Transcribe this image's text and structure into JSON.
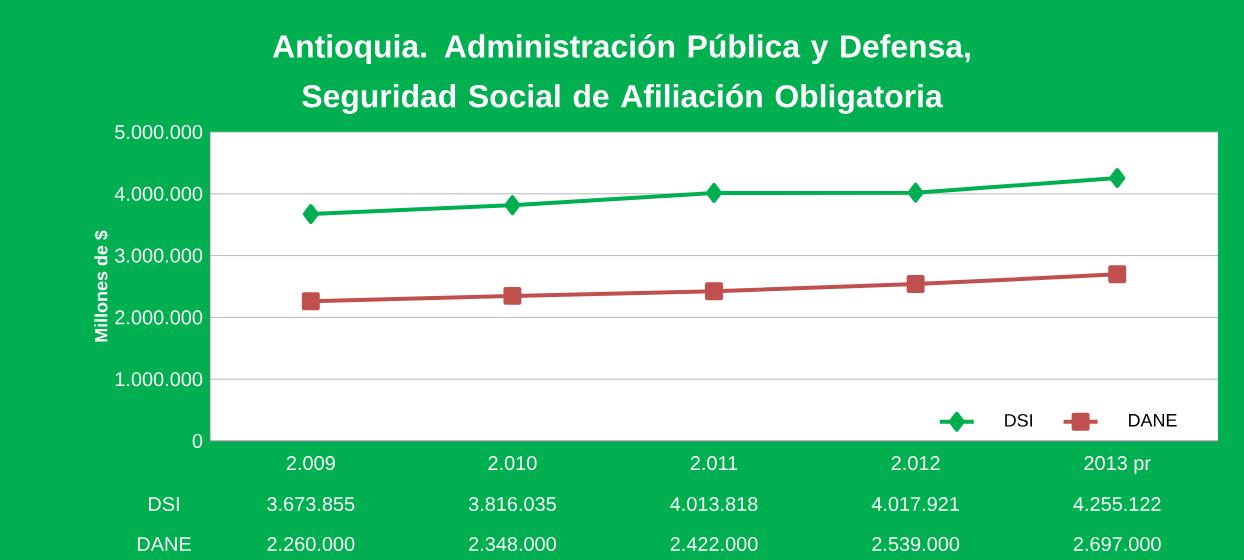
{
  "chart_data": {
    "type": "line",
    "title": "Antioquia. Administración Pública y Defensa,\nSeguridad Social de Afiliación Obligatoria",
    "ylabel": "Millones de $",
    "categories": [
      "2.009",
      "2.010",
      "2.011",
      "2.012",
      "2013 pr"
    ],
    "series": [
      {
        "name": "DSI",
        "color": "#00b050",
        "marker": "diamond",
        "values": [
          3673855,
          3816035,
          4013818,
          4017921,
          4255122
        ],
        "value_labels": [
          "3.673.855",
          "3.816.035",
          "4.013.818",
          "4.017.921",
          "4.255.122"
        ]
      },
      {
        "name": "DANE",
        "color": "#c0504d",
        "marker": "square",
        "values": [
          2260000,
          2348000,
          2422000,
          2539000,
          2697000
        ],
        "value_labels": [
          "2.260.000",
          "2.348.000",
          "2.422.000",
          "2.539.000",
          "2.697.000"
        ]
      }
    ],
    "ylim": [
      0,
      5000000
    ],
    "yticks": [
      0,
      {
        "value": 1000000,
        "label": "1.000.000"
      },
      {
        "value": 2000000,
        "label": "2.000.000"
      },
      {
        "value": 3000000,
        "label": "3.000.000"
      },
      {
        "value": 4000000,
        "label": "4.000.000"
      },
      {
        "value": 5000000,
        "label": "5.000.000"
      }
    ],
    "grid": "y",
    "legend": "bottom right",
    "line_style": "solid"
  }
}
